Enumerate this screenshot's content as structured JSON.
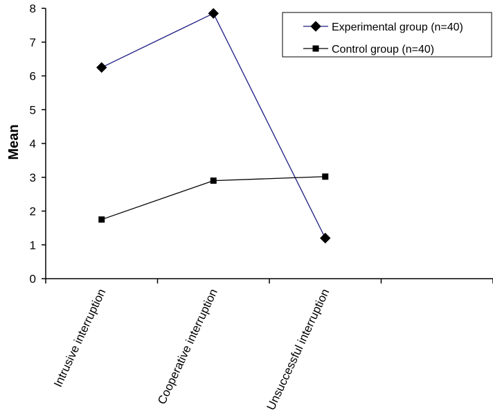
{
  "chart_data": {
    "type": "line",
    "categories": [
      "Intrusive interruption",
      "Cooperative interruption",
      "Unsuccessful interruption"
    ],
    "series": [
      {
        "name": "Experimental group (n=40)",
        "values": [
          6.25,
          7.85,
          1.2
        ],
        "color": "#1a1a80",
        "marker": "diamond"
      },
      {
        "name": "Control group (n=40)",
        "values": [
          1.75,
          2.9,
          3.02
        ],
        "color": "#000000",
        "marker": "square"
      }
    ],
    "title": "",
    "xlabel": "",
    "ylabel": "Mean",
    "ylim": [
      0,
      8
    ],
    "yticks": [
      0,
      1,
      2,
      3,
      4,
      5,
      6,
      7,
      8
    ],
    "grid": false,
    "legend_position": "top-right"
  }
}
